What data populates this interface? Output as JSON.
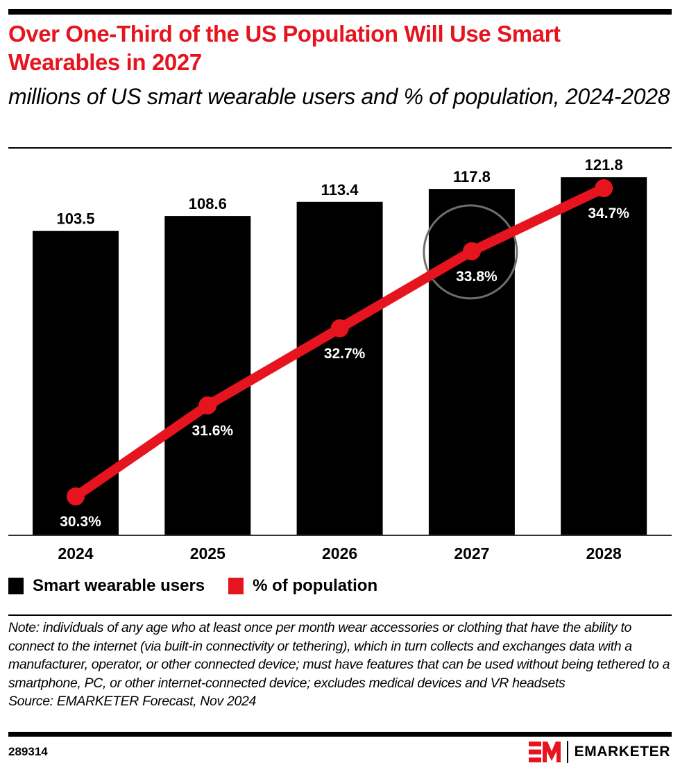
{
  "header": {
    "title": "Over One-Third of the US Population Will Use Smart Wearables in 2027",
    "subtitle": "millions of US smart wearable users and % of population, 2024-2028"
  },
  "legend": {
    "items": [
      {
        "label": "Smart wearable users",
        "color": "#000000"
      },
      {
        "label": "% of population",
        "color": "#E5141E"
      }
    ]
  },
  "note": "Note: individuals of any age who at least once per month wear accessories or clothing that have the ability to connect to the internet (via built-in connectivity or tethering), which in turn collects and exchanges data with a manufacturer, operator, or other connected device; must have features that can be used without being tethered to a smartphone, PC, or other internet-connected device; excludes medical devices  and VR headsets",
  "source": "Source: EMARKETER Forecast, Nov 2024",
  "footer": {
    "chart_id": "289314",
    "brand": "EMARKETER"
  },
  "colors": {
    "accent": "#E5141E",
    "bar": "#000000",
    "highlight_circle": "#6E6E6E"
  },
  "chart_data": {
    "type": "bar",
    "title": "Over One-Third of the US Population Will Use Smart Wearables in 2027",
    "subtitle": "millions of US smart wearable users and % of population, 2024-2028",
    "xlabel": "",
    "ylabel": "",
    "categories": [
      "2024",
      "2025",
      "2026",
      "2027",
      "2028"
    ],
    "series": [
      {
        "name": "Smart wearable users",
        "type": "bar",
        "unit": "millions",
        "values": [
          103.5,
          108.6,
          113.4,
          117.8,
          121.8
        ],
        "labels": [
          "103.5",
          "108.6",
          "113.4",
          "117.8",
          "121.8"
        ]
      },
      {
        "name": "% of population",
        "type": "line",
        "unit": "%",
        "values": [
          30.3,
          31.6,
          32.7,
          33.8,
          34.7
        ],
        "labels": [
          "30.3%",
          "31.6%",
          "32.7%",
          "33.8%",
          "34.7%"
        ]
      }
    ],
    "ylim_bars": [
      0,
      121.8
    ],
    "ylim_line": [
      30.3,
      34.7
    ],
    "highlight": {
      "category": "2027",
      "series": "% of population"
    },
    "grid": false,
    "legend_position": "bottom-left"
  }
}
